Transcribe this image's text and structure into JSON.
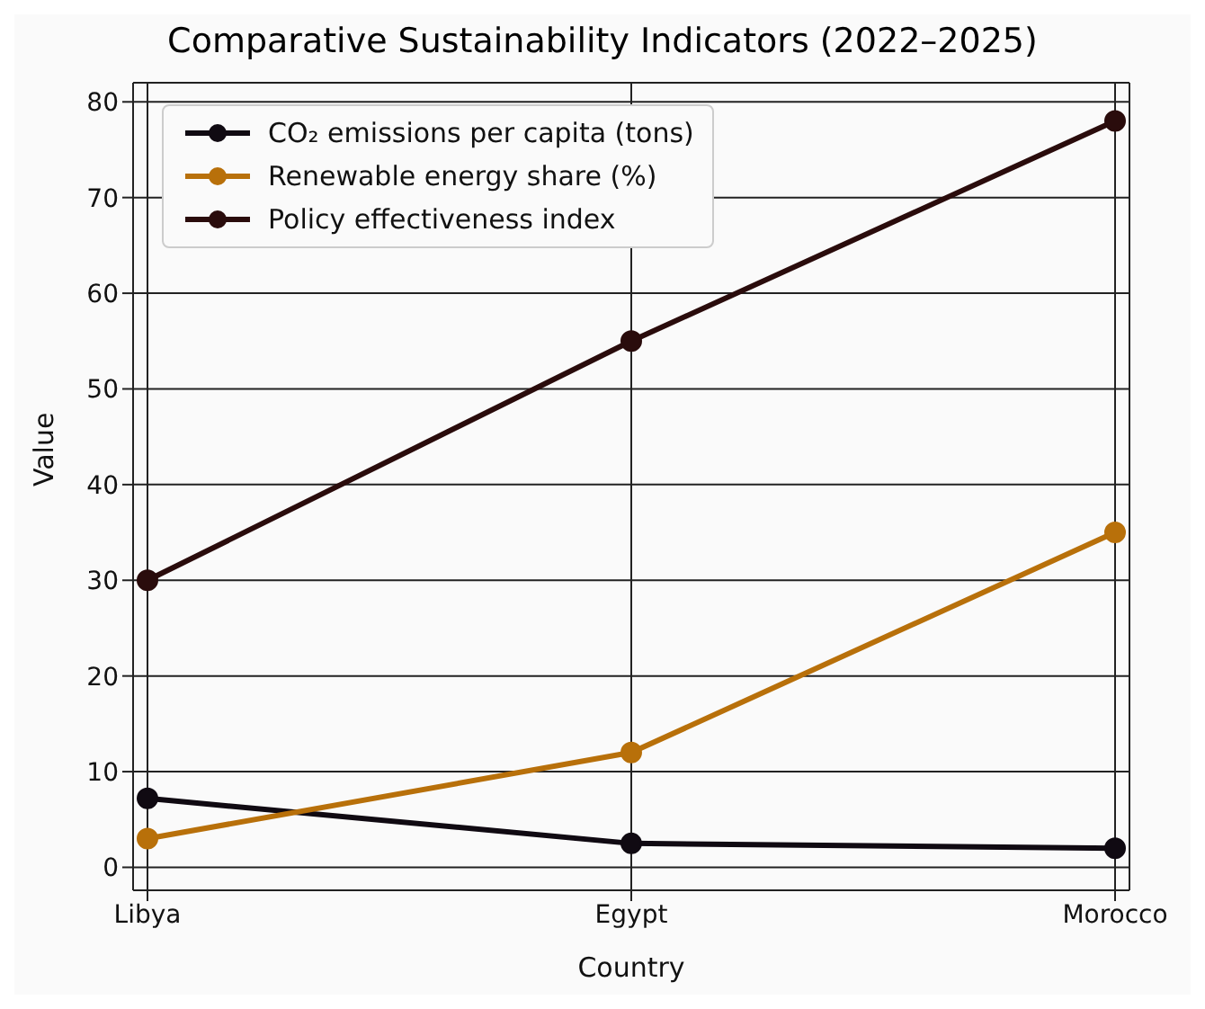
{
  "chart_data": {
    "type": "line",
    "title": "Comparative Sustainability Indicators (2022–2025)",
    "xlabel": "Country",
    "ylabel": "Value",
    "categories": [
      "Libya",
      "Egypt",
      "Morocco"
    ],
    "series": [
      {
        "name": "CO₂ emissions per capita (tons)",
        "color": "#100a12",
        "values": [
          7.2,
          2.5,
          2.0
        ]
      },
      {
        "name": "Renewable energy share (%)",
        "color": "#b8700a",
        "values": [
          3,
          12,
          35
        ]
      },
      {
        "name": "Policy effectiveness index",
        "color": "#2a0c0c",
        "values": [
          30,
          55,
          78
        ]
      }
    ],
    "ylim": [
      -2.4,
      82
    ],
    "yticks": [
      0,
      10,
      20,
      30,
      40,
      50,
      60,
      70,
      80
    ],
    "grid": true,
    "legend": "top left",
    "marker": "circle",
    "line_style": "solid"
  }
}
